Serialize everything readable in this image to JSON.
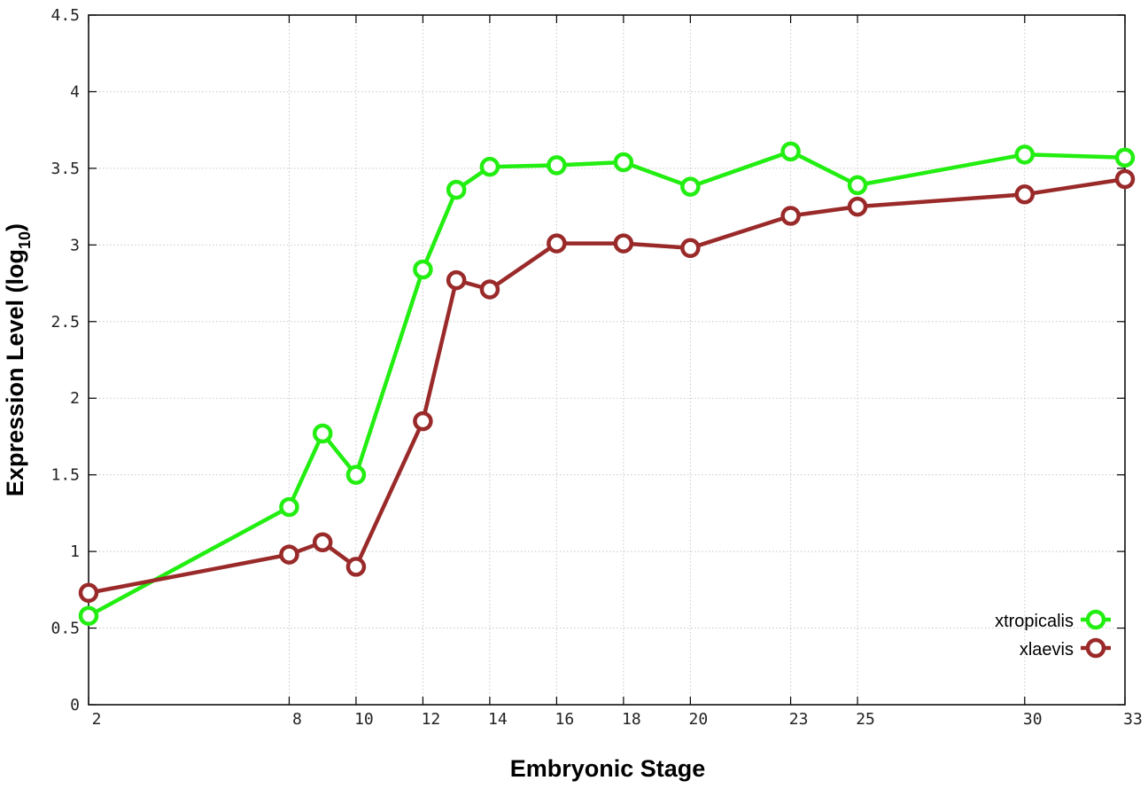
{
  "chart_data": {
    "type": "line",
    "xlabel": "Embryonic Stage",
    "ylabel": "Expression Level (log",
    "ylabel_subscript": "10",
    "ylabel_suffix": ")",
    "xlim": [
      2,
      33
    ],
    "ylim": [
      0,
      4.5
    ],
    "x_ticks": [
      2,
      8,
      10,
      12,
      14,
      16,
      18,
      20,
      23,
      25,
      30,
      33
    ],
    "x_tick_labels": [
      "2",
      "8",
      "10",
      "12",
      "14",
      "16",
      "18",
      "20",
      "23",
      "25",
      "30",
      "33"
    ],
    "y_ticks": [
      0,
      0.5,
      1,
      1.5,
      2,
      2.5,
      3,
      3.5,
      4,
      4.5
    ],
    "y_tick_labels": [
      "0",
      "0.5",
      "1",
      "1.5",
      "2",
      "2.5",
      "3",
      "3.5",
      "4",
      "4.5"
    ],
    "grid": true,
    "legend_position": "bottom-right",
    "x": [
      2,
      8,
      9,
      10,
      12,
      13,
      14,
      16,
      18,
      20,
      23,
      25,
      30,
      33
    ],
    "series": [
      {
        "name": "xtropicalis",
        "color": "#22ee11",
        "values": [
          0.58,
          1.29,
          1.77,
          1.5,
          2.84,
          3.36,
          3.51,
          3.52,
          3.54,
          3.38,
          3.61,
          3.39,
          3.59,
          3.57
        ]
      },
      {
        "name": "xlaevis",
        "color": "#9a2a2a",
        "values": [
          0.73,
          0.98,
          1.06,
          0.9,
          1.85,
          2.77,
          2.71,
          3.01,
          3.01,
          2.98,
          3.19,
          3.25,
          3.33,
          3.43
        ]
      }
    ]
  }
}
